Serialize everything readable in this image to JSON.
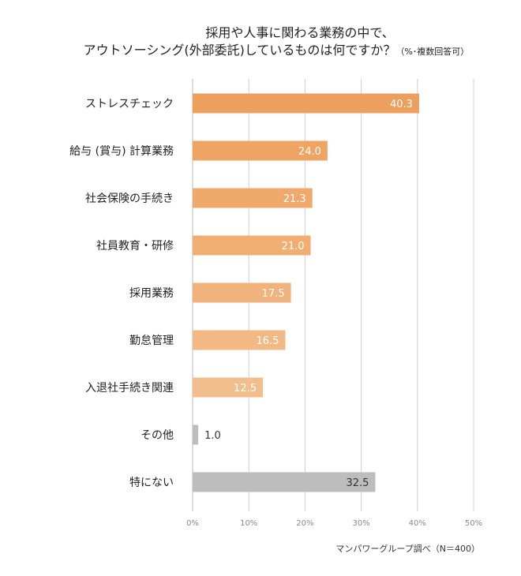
{
  "chart_data": {
    "type": "bar",
    "orientation": "horizontal",
    "title_line1": "採用や人事に関わる業務の中で、",
    "title_line2": "アウトソーシング(外部委託)しているものは何ですか？",
    "title_note": "（%･複数回答可）",
    "categories": [
      "ストレスチェック",
      "給与 (賞与) 計算業務",
      "社会保険の手続き",
      "社員教育・研修",
      "採用業務",
      "勤怠管理",
      "入退社手続き関連",
      "その他",
      "特にない"
    ],
    "values": [
      40.3,
      24.0,
      21.3,
      21.0,
      17.5,
      16.5,
      12.5,
      1.0,
      32.5
    ],
    "value_labels": [
      "40.3",
      "24.0",
      "21.3",
      "21.0",
      "17.5",
      "16.5",
      "12.5",
      "1.0",
      "32.5"
    ],
    "colors": [
      "#EDA05E",
      "#EEA564",
      "#EFA96B",
      "#F0AE73",
      "#F1B37C",
      "#F2B985",
      "#F3BE8E",
      "#BDBDBD",
      "#BDBDBD"
    ],
    "xlim": [
      0,
      50
    ],
    "x_ticks": [
      "0%",
      "10%",
      "20%",
      "30%",
      "40%",
      "50%"
    ],
    "grid": true,
    "source": "マンパワーグループ調べ（N＝400）"
  }
}
